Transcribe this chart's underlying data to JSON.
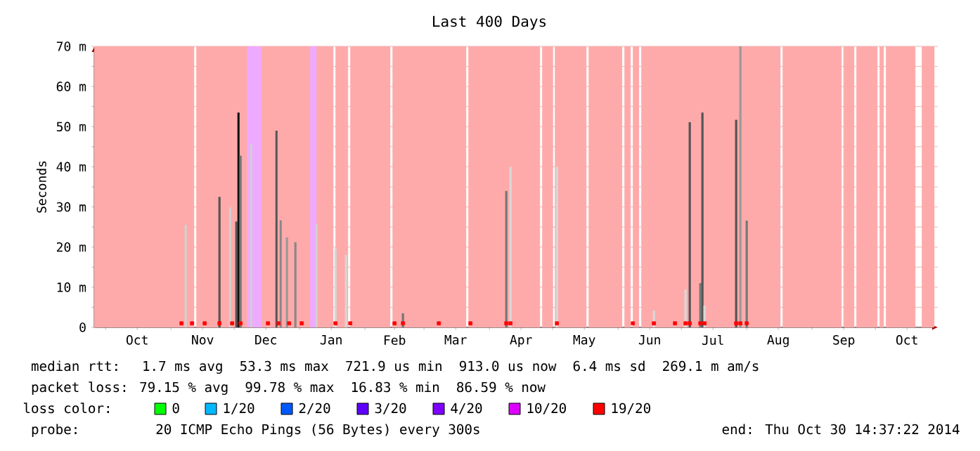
{
  "chart_data": {
    "type": "bar",
    "title": "Last 400 Days",
    "ylabel": "Seconds",
    "xlim": [
      "2013-09-25T14:37",
      "2014-10-30T14:37"
    ],
    "xticks": [
      {
        "value": "2013-10-01",
        "label": null
      },
      {
        "value": "2013-10-16",
        "label": "Oct"
      },
      {
        "value": "2013-11-01",
        "label": null
      },
      {
        "value": "2013-11-16",
        "label": "Nov"
      },
      {
        "value": "2013-12-01",
        "label": null
      },
      {
        "value": "2013-12-16",
        "label": "Dec"
      },
      {
        "value": "2014-01-01",
        "label": null
      },
      {
        "value": "2014-01-16",
        "label": "Jan"
      },
      {
        "value": "2014-02-01",
        "label": null
      },
      {
        "value": "2014-02-15",
        "label": "Feb"
      },
      {
        "value": "2014-03-01",
        "label": null
      },
      {
        "value": "2014-03-16",
        "label": "Mar"
      },
      {
        "value": "2014-04-01",
        "label": null
      },
      {
        "value": "2014-04-16",
        "label": "Apr"
      },
      {
        "value": "2014-05-01",
        "label": null
      },
      {
        "value": "2014-05-16",
        "label": "May"
      },
      {
        "value": "2014-06-01",
        "label": null
      },
      {
        "value": "2014-06-16",
        "label": "Jun"
      },
      {
        "value": "2014-07-01",
        "label": null
      },
      {
        "value": "2014-07-16",
        "label": "Jul"
      },
      {
        "value": "2014-08-01",
        "label": null
      },
      {
        "value": "2014-08-16",
        "label": "Aug"
      },
      {
        "value": "2014-09-01",
        "label": null
      },
      {
        "value": "2014-09-16",
        "label": "Sep"
      },
      {
        "value": "2014-10-01",
        "label": null
      },
      {
        "value": "2014-10-16",
        "label": "Oct"
      }
    ],
    "ylim": [
      0,
      70
    ],
    "yticks": [
      {
        "value": 0,
        "label": "0"
      },
      {
        "value": 5,
        "label": null
      },
      {
        "value": 10,
        "label": "10 m"
      },
      {
        "value": 15,
        "label": null
      },
      {
        "value": 20,
        "label": "20 m"
      },
      {
        "value": 25,
        "label": null
      },
      {
        "value": 30,
        "label": "30 m"
      },
      {
        "value": 35,
        "label": null
      },
      {
        "value": 40,
        "label": "40 m"
      },
      {
        "value": 45,
        "label": null
      },
      {
        "value": 50,
        "label": "50 m"
      },
      {
        "value": 55,
        "label": null
      },
      {
        "value": 60,
        "label": "60 m"
      },
      {
        "value": 65,
        "label": null
      },
      {
        "value": 70,
        "label": "70 m"
      }
    ],
    "grid": true,
    "legend": "bottom",
    "legend_title": "loss color:",
    "series": [
      {
        "x": [
          "2013-11-08",
          "2013-11-24",
          "2013-11-29",
          "2013-12-02",
          "2013-12-03",
          "2013-12-04",
          "2013-12-09",
          "2013-12-21",
          "2013-12-23",
          "2013-12-26",
          "2013-12-30",
          "2014-01-09",
          "2014-01-18",
          "2014-01-23",
          "2014-02-19",
          "2014-04-09",
          "2014-04-11",
          "2014-05-03",
          "2014-06-18",
          "2014-07-03",
          "2014-07-05",
          "2014-07-10",
          "2014-07-11",
          "2014-07-12",
          "2014-07-27",
          "2014-07-29",
          "2014-08-01"
        ],
        "values": [
          25.5,
          32.5,
          29.9,
          26.4,
          53.5,
          42.8,
          45.6,
          49,
          26.7,
          22.4,
          21.2,
          25.9,
          19.7,
          18,
          3.5,
          34,
          40,
          40,
          4.2,
          9.4,
          51.1,
          11,
          53.5,
          5.4,
          51.7,
          70,
          26.6
        ],
        "colors": [
          "#d0d0d0",
          "#555555",
          "#d0d0d0",
          "#555555",
          "#111111",
          "#777777",
          "#d0d0d0",
          "#555555",
          "#888888",
          "#999999",
          "#888888",
          "#d0d0d0",
          "#d8d8d8",
          "#d8d8d8",
          "#777777",
          "#777777",
          "#d8d8d8",
          "#d8d8d8",
          "#d8d8d8",
          "#d8d8d8",
          "#555555",
          "#777777",
          "#555555",
          "#d8d8d8",
          "#555555",
          "#999999",
          "#777777"
        ]
      },
      {
        "type": "scatter",
        "name": "0",
        "color": "#00ff00"
      },
      {
        "type": "scatter",
        "name": "1/20",
        "color": "#00b8ff"
      },
      {
        "type": "scatter",
        "name": "2/20",
        "color": "#0059ff"
      },
      {
        "type": "scatter",
        "name": "3/20",
        "color": "#5e00ff"
      },
      {
        "type": "scatter",
        "name": "4/20",
        "color": "#7e00ff"
      },
      {
        "type": "scatter",
        "name": "10/20",
        "color": "#dd00ff"
      },
      {
        "type": "scatter",
        "name": "19/20",
        "color": "#ff0000",
        "marker": "square",
        "x": [
          "2013-11-06",
          "2013-11-11",
          "2013-11-17",
          "2013-11-24",
          "2013-11-30",
          "2013-12-04",
          "2013-12-17",
          "2013-12-22",
          "2013-12-27",
          "2014-01-02",
          "2014-01-18",
          "2014-01-25",
          "2014-02-15",
          "2014-02-19",
          "2014-03-08",
          "2014-03-23",
          "2014-04-09",
          "2014-04-11",
          "2014-05-03",
          "2014-06-08",
          "2014-06-18",
          "2014-06-28",
          "2014-07-03",
          "2014-07-05",
          "2014-07-10",
          "2014-07-12",
          "2014-07-27",
          "2014-07-29",
          "2014-08-01"
        ],
        "values": [
          1,
          1,
          1,
          1,
          1,
          1,
          1,
          1,
          1,
          1,
          1,
          1,
          1,
          1,
          1,
          1,
          1,
          1,
          1,
          1,
          1,
          1,
          1,
          1,
          1,
          1,
          1,
          1,
          1
        ]
      }
    ],
    "bands": [
      {
        "axis": "x",
        "from": "2013-09-25T14:37",
        "to": "2013-11-12",
        "color": "#ffaaaa"
      },
      {
        "axis": "x",
        "from": "2013-11-13",
        "to": "2014-01-17",
        "color": "#ffaaaa"
      },
      {
        "axis": "x",
        "from": "2014-01-18",
        "to": "2014-01-24",
        "color": "#ffaaaa"
      },
      {
        "axis": "x",
        "from": "2014-01-25",
        "to": "2014-02-13",
        "color": "#ffaaaa"
      },
      {
        "axis": "x",
        "from": "2014-02-14",
        "to": "2014-03-21",
        "color": "#ffaaaa"
      },
      {
        "axis": "x",
        "from": "2014-03-22",
        "to": "2014-04-25",
        "color": "#ffaaaa"
      },
      {
        "axis": "x",
        "from": "2014-04-26",
        "to": "2014-05-01",
        "color": "#ffaaaa"
      },
      {
        "axis": "x",
        "from": "2014-05-02",
        "to": "2014-05-17",
        "color": "#ffaaaa"
      },
      {
        "axis": "x",
        "from": "2014-05-18",
        "to": "2014-06-03",
        "color": "#ffaaaa"
      },
      {
        "axis": "x",
        "from": "2014-06-04",
        "to": "2014-06-07",
        "color": "#ffaaaa"
      },
      {
        "axis": "x",
        "from": "2014-06-08",
        "to": "2014-06-11",
        "color": "#ffaaaa"
      },
      {
        "axis": "x",
        "from": "2014-06-12",
        "to": "2014-08-17",
        "color": "#ffaaaa"
      },
      {
        "axis": "x",
        "from": "2014-08-18",
        "to": "2014-09-15",
        "color": "#ffaaaa"
      },
      {
        "axis": "x",
        "from": "2014-09-16",
        "to": "2014-09-21",
        "color": "#ffaaaa"
      },
      {
        "axis": "x",
        "from": "2014-09-22",
        "to": "2014-10-02",
        "color": "#ffaaaa"
      },
      {
        "axis": "x",
        "from": "2014-10-03",
        "to": "2014-10-05",
        "color": "#ffaaaa"
      },
      {
        "axis": "x",
        "from": "2014-10-06",
        "to": "2014-10-20",
        "color": "#ffaaaa"
      },
      {
        "axis": "x",
        "from": "2014-10-23",
        "to": "2014-10-29",
        "color": "#ffaaaa"
      },
      {
        "axis": "x",
        "from": "2013-12-07",
        "to": "2013-12-14",
        "color": "#eeaaff"
      },
      {
        "axis": "x",
        "from": "2014-01-06",
        "to": "2014-01-09",
        "color": "#eeaaff"
      }
    ],
    "annotations": [
      "median rtt:  1.7 ms avg  53.3 ms max  721.9 us min  913.0 us now  6.4 ms sd  269.1 m am/s",
      "packet loss: 79.15 % avg  99.78 % max  16.83 % min  86.59 % now",
      "probe:       20 ICMP Echo Pings (56 Bytes) every 300s",
      "end: Thu Oct 30 14:37:22 2014"
    ]
  }
}
